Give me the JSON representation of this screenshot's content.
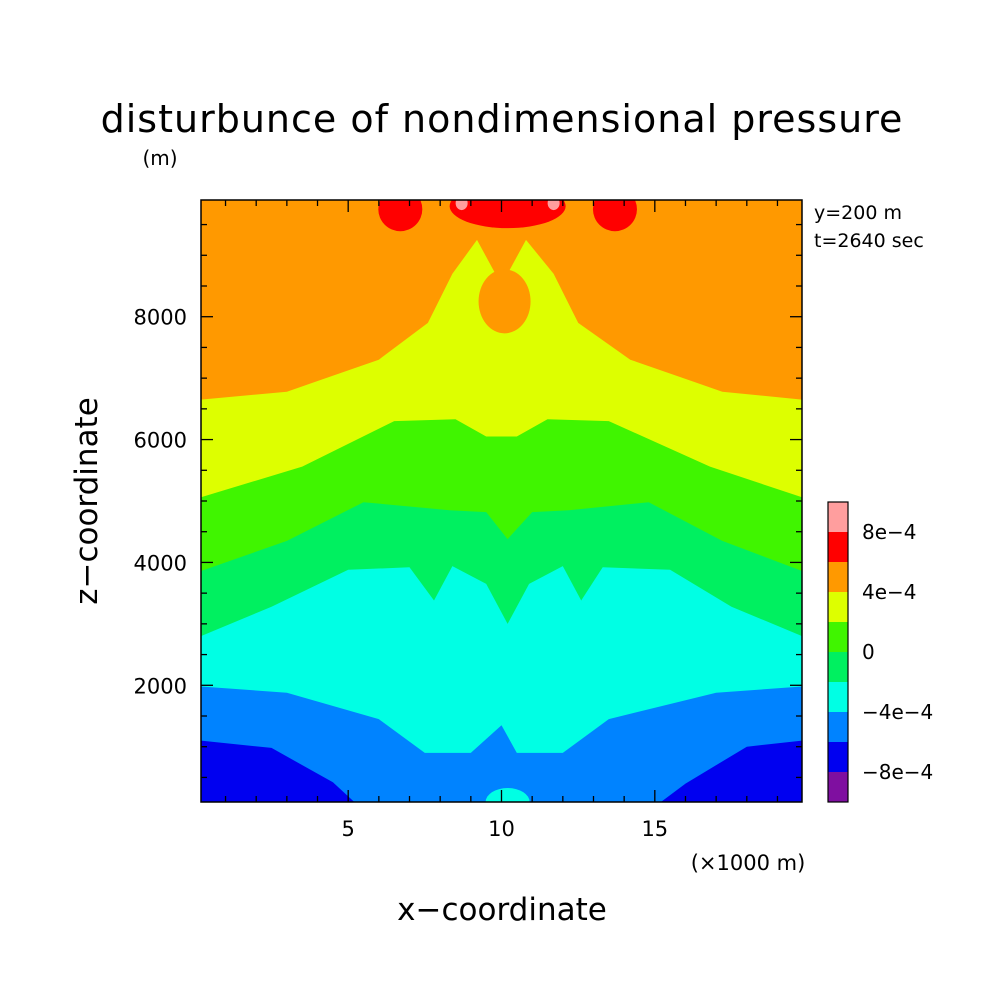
{
  "chart_data": {
    "type": "contour",
    "title": "disturbunce of nondimensional pressure",
    "ylabel_unit": "(m)",
    "xlabel": "x−coordinate",
    "ylabel": "z−coordinate",
    "x_unit": "(×1000 m)",
    "xlim": [
      0.2,
      19.8
    ],
    "ylim": [
      100,
      9900
    ],
    "xticks": [
      5,
      10,
      15
    ],
    "xtick_labels": [
      "5",
      "10",
      "15"
    ],
    "yticks": [
      2000,
      4000,
      6000,
      8000
    ],
    "ytick_labels": [
      "2000",
      "4000",
      "6000",
      "8000"
    ],
    "annotations": [
      "y=200 m",
      "t=2640 sec"
    ],
    "colorbar": {
      "levels": [
        -0.0012,
        -0.0008,
        -0.0006,
        -0.0004,
        -0.0002,
        0,
        0.0002,
        0.0004,
        0.0006,
        0.0008,
        0.0012
      ],
      "colors": [
        "#7f0fa0",
        "#0000f0",
        "#0083ff",
        "#00ffe4",
        "#00f060",
        "#40f500",
        "#ddff00",
        "#ff9900",
        "#ff0000",
        "#ff9e9e"
      ],
      "tick_labels": [
        {
          "label": "8e−4",
          "value": 0.0008
        },
        {
          "label": "4e−4",
          "value": 0.0004
        },
        {
          "label": "0",
          "value": 0
        },
        {
          "label": "−4e−4",
          "value": -0.0004
        },
        {
          "label": "−8e−4",
          "value": -0.0008
        }
      ]
    },
    "contour_bands": [
      {
        "level": "-8e-4 to -6e-4",
        "color": "#0000f0",
        "shape": "bottom corners",
        "left": [
          [
            0.2,
            1100
          ],
          [
            2.5,
            980
          ],
          [
            4.5,
            420
          ],
          [
            5.2,
            100
          ]
        ],
        "right": [
          [
            15.2,
            100
          ],
          [
            16,
            400
          ],
          [
            18,
            1000
          ],
          [
            19.8,
            1100
          ]
        ]
      },
      {
        "level": "-6e-4 to -4e-4",
        "color": "#0083ff",
        "upper_boundary": [
          [
            0.2,
            1980
          ],
          [
            3,
            1880
          ],
          [
            6,
            1450
          ],
          [
            7.5,
            900
          ],
          [
            9,
            900
          ],
          [
            10,
            1350
          ],
          [
            10.5,
            900
          ],
          [
            12,
            900
          ],
          [
            13.5,
            1450
          ],
          [
            17,
            1880
          ],
          [
            19.8,
            1980
          ]
        ]
      },
      {
        "level": "-4e-4 to -2e-4",
        "color": "#00ffe4",
        "upper_boundary": [
          [
            0.2,
            2800
          ],
          [
            2.5,
            3280
          ],
          [
            5,
            3880
          ],
          [
            7,
            3920
          ],
          [
            7.8,
            3380
          ],
          [
            8.4,
            3940
          ],
          [
            9.5,
            3650
          ],
          [
            10.2,
            3000
          ],
          [
            10.9,
            3650
          ],
          [
            12,
            3940
          ],
          [
            12.6,
            3380
          ],
          [
            13.3,
            3920
          ],
          [
            15.5,
            3880
          ],
          [
            17.5,
            3280
          ],
          [
            19.8,
            2800
          ]
        ]
      },
      {
        "level": "-2e-4 to 0",
        "color": "#00f060",
        "upper_boundary": [
          [
            0.2,
            3860
          ],
          [
            3,
            4350
          ],
          [
            5.5,
            4980
          ],
          [
            8.3,
            4850
          ],
          [
            9.5,
            4820
          ],
          [
            10.2,
            4380
          ],
          [
            11,
            4820
          ],
          [
            12.2,
            4850
          ],
          [
            14.8,
            4980
          ],
          [
            17.2,
            4350
          ],
          [
            19.8,
            3860
          ]
        ]
      },
      {
        "level": "0 to 2e-4",
        "color": "#40f500",
        "upper_boundary": [
          [
            0.2,
            5060
          ],
          [
            3.5,
            5560
          ],
          [
            6.5,
            6300
          ],
          [
            8.5,
            6330
          ],
          [
            9.5,
            6050
          ],
          [
            10.5,
            6050
          ],
          [
            11.5,
            6330
          ],
          [
            13.5,
            6300
          ],
          [
            16.8,
            5560
          ],
          [
            19.8,
            5060
          ]
        ]
      },
      {
        "level": "2e-4 to 4e-4",
        "color": "#ddff00",
        "upper_boundary": [
          [
            0.2,
            6650
          ],
          [
            3,
            6780
          ],
          [
            6,
            7300
          ],
          [
            7.6,
            7900
          ],
          [
            8.4,
            8700
          ],
          [
            9.2,
            9250
          ],
          [
            9.8,
            8700
          ],
          [
            10.2,
            8700
          ],
          [
            10.8,
            9250
          ],
          [
            11.7,
            8700
          ],
          [
            12.5,
            7900
          ],
          [
            14.2,
            7300
          ],
          [
            17.2,
            6780
          ],
          [
            19.8,
            6650
          ]
        ],
        "inner_hole": {
          "level": "4e-4 to 6e-4",
          "center": [
            10.1,
            8250
          ]
        }
      },
      {
        "level": "6e-4 to 8e-4",
        "color": "#ff0000",
        "shape": "small cells at top",
        "centers": [
          [
            6.7,
            9750
          ],
          [
            10.2,
            9800
          ],
          [
            13.7,
            9750
          ]
        ]
      },
      {
        "level": "> 8e-4",
        "color": "#ff9e9e",
        "shape": "tiny cells at top",
        "centers": [
          [
            8.7,
            9850
          ],
          [
            11.7,
            9850
          ]
        ]
      }
    ]
  }
}
